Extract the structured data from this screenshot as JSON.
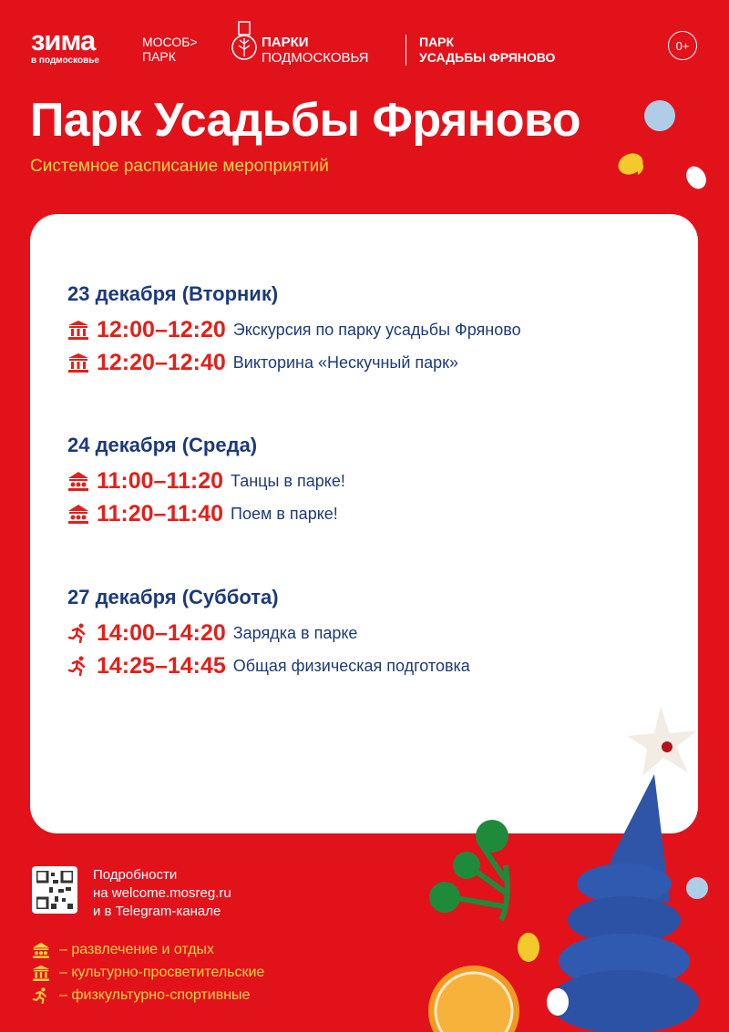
{
  "header": {
    "zima": "зима",
    "zima_sub": "в подмосковье",
    "mosob_line1": "МОСОБ>",
    "mosob_line2": "ПАРК",
    "parki_line1": "ПАРКИ",
    "parki_line2": "ПОДМОСКОВЬЯ",
    "park_line1": "ПАРК",
    "park_line2": "УСАДЬБЫ ФРЯНОВО",
    "age": "0+"
  },
  "title": "Парк Усадьбы Фряново",
  "subtitle": "Системное расписание мероприятий",
  "days": [
    {
      "date": "23 декабря (Вторник)",
      "events": [
        {
          "icon": "museum-icon",
          "time": "12:00–12:20",
          "name": "Экскурсия по парку усадьбы Фряново"
        },
        {
          "icon": "museum-icon",
          "time": "12:20–12:40",
          "name": "Викторина «Нескучный парк»"
        }
      ]
    },
    {
      "date": "24 декабря (Среда)",
      "events": [
        {
          "icon": "carousel-icon",
          "time": "11:00–11:20",
          "name": "Танцы в парке!"
        },
        {
          "icon": "carousel-icon",
          "time": "11:20–11:40",
          "name": "Поем в парке!"
        }
      ]
    },
    {
      "date": "27 декабря (Суббота)",
      "events": [
        {
          "icon": "runner-icon",
          "time": "14:00–14:20",
          "name": "Зарядка в парке"
        },
        {
          "icon": "runner-icon",
          "time": "14:25–14:45",
          "name": "Общая физическая подготовка"
        }
      ]
    }
  ],
  "info": {
    "line1": "Подробности",
    "line2": "на welcome.mosreg.ru",
    "line3": "и в Telegram-канале"
  },
  "legend": [
    {
      "icon": "carousel-icon",
      "label": "– развлечение и отдых"
    },
    {
      "icon": "museum-icon",
      "label": "– культурно-просветительские"
    },
    {
      "icon": "runner-icon",
      "label": "– физкультурно-спортивные"
    }
  ],
  "colors": {
    "background": "#e2121b",
    "accent_yellow": "#ffd23c",
    "date_navy": "#1d3a7a",
    "time_red": "#e2201b"
  }
}
